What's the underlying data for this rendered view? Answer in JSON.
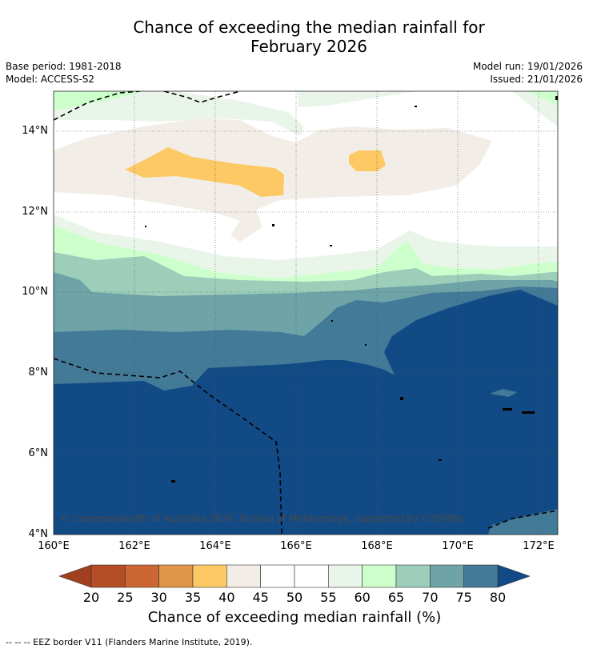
{
  "title": {
    "line1": "Chance of exceeding the median rainfall for",
    "line2": "February 2026"
  },
  "meta": {
    "base_period": "Base period: 1981-2018",
    "model": "Model: ACCESS-S2",
    "model_run": "Model run: 19/01/2026",
    "issued": "Issued: 21/01/2026"
  },
  "map": {
    "lat_labels": [
      "14°N",
      "12°N",
      "10°N",
      "8°N",
      "6°N",
      "4°N"
    ],
    "lon_labels": [
      "160°E",
      "162°E",
      "164°E",
      "166°E",
      "168°E",
      "170°E",
      "172°E"
    ],
    "copyright": "© Commonwealth of Australia 2026, Bureau of Meteorology, supported by COSPPac",
    "extent": {
      "lon_min": 160,
      "lon_max": 172.5,
      "lat_min": 4,
      "lat_max": 15
    }
  },
  "colorbar": {
    "title": "Chance of exceeding median rainfall (%)",
    "ticks": [
      "20",
      "25",
      "30",
      "35",
      "40",
      "45",
      "50",
      "55",
      "60",
      "65",
      "70",
      "75",
      "80"
    ],
    "colors": [
      "#b44c25",
      "#cc6633",
      "#e09548",
      "#fcc964",
      "#f2ede7",
      "#ffffff",
      "#ffffff",
      "#eaf5ea",
      "#ccffcc",
      "#9cceb9",
      "#6ea3a8",
      "#427a98"
    ],
    "under_color": "#a0401e",
    "over_color": "#124a86"
  },
  "footnote": "--  --  -- EEZ border V11 (Flanders Marine Institute, 2019)."
}
